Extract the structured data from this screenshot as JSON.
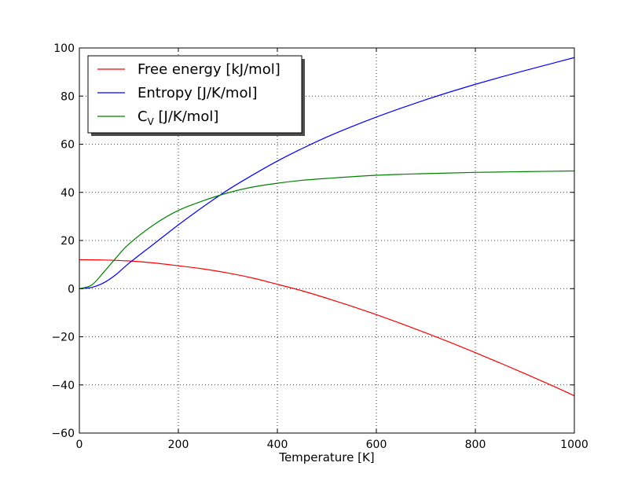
{
  "chart_data": {
    "type": "line",
    "title": "",
    "xlabel": "Temperature [K]",
    "ylabel": "",
    "xlim": [
      0,
      1000
    ],
    "ylim": [
      -60,
      100
    ],
    "xticks": [
      0,
      200,
      400,
      600,
      800,
      1000
    ],
    "yticks": [
      -60,
      -40,
      -20,
      0,
      20,
      40,
      60,
      80,
      100
    ],
    "xtick_labels": [
      "0",
      "200",
      "400",
      "600",
      "800",
      "1000"
    ],
    "ytick_labels": [
      "−60",
      "−40",
      "−20",
      "0",
      "20",
      "40",
      "60",
      "80",
      "100"
    ],
    "grid": true,
    "legend_position": "top-left",
    "series": [
      {
        "name": "Free energy [kJ/mol]",
        "legend_main": "Free energy [kJ/mol]",
        "color": "#ff0000",
        "x": [
          0,
          50,
          100,
          150,
          200,
          250,
          300,
          350,
          400,
          450,
          500,
          550,
          600,
          650,
          700,
          750,
          800,
          850,
          900,
          950,
          1000
        ],
        "y": [
          12,
          11.9,
          11.5,
          10.7,
          9.5,
          8.2,
          6.5,
          4.4,
          1.8,
          -0.9,
          -4,
          -7.3,
          -10.8,
          -14.5,
          -18.4,
          -22.4,
          -26.6,
          -30.9,
          -35.3,
          -39.8,
          -44.5
        ]
      },
      {
        "name": "Entropy [J/K/mol]",
        "legend_main": "Entropy [J/K/mol]",
        "color": "#0000ff",
        "x": [
          0,
          25,
          50,
          75,
          100,
          150,
          200,
          250,
          300,
          350,
          400,
          450,
          500,
          550,
          600,
          650,
          700,
          750,
          800,
          850,
          900,
          950,
          1000
        ],
        "y": [
          0,
          0.5,
          2.5,
          6,
          10.5,
          18.5,
          26.5,
          34,
          41,
          47.2,
          53,
          58.2,
          63,
          67.3,
          71.3,
          75,
          78.5,
          81.8,
          84.9,
          87.8,
          90.6,
          93.3,
          96
        ]
      },
      {
        "name": "CV [J/K/mol]",
        "legend_main": "C",
        "legend_sub": "V",
        "legend_rest": " [J/K/mol]",
        "color": "#008000",
        "x": [
          0,
          25,
          50,
          75,
          100,
          150,
          200,
          250,
          300,
          350,
          400,
          450,
          500,
          600,
          700,
          800,
          900,
          1000
        ],
        "y": [
          0,
          1.5,
          7,
          13,
          18.5,
          26.5,
          32.5,
          36.5,
          39.8,
          42.2,
          43.8,
          45,
          45.8,
          47.1,
          47.8,
          48.3,
          48.6,
          48.9
        ]
      }
    ]
  }
}
